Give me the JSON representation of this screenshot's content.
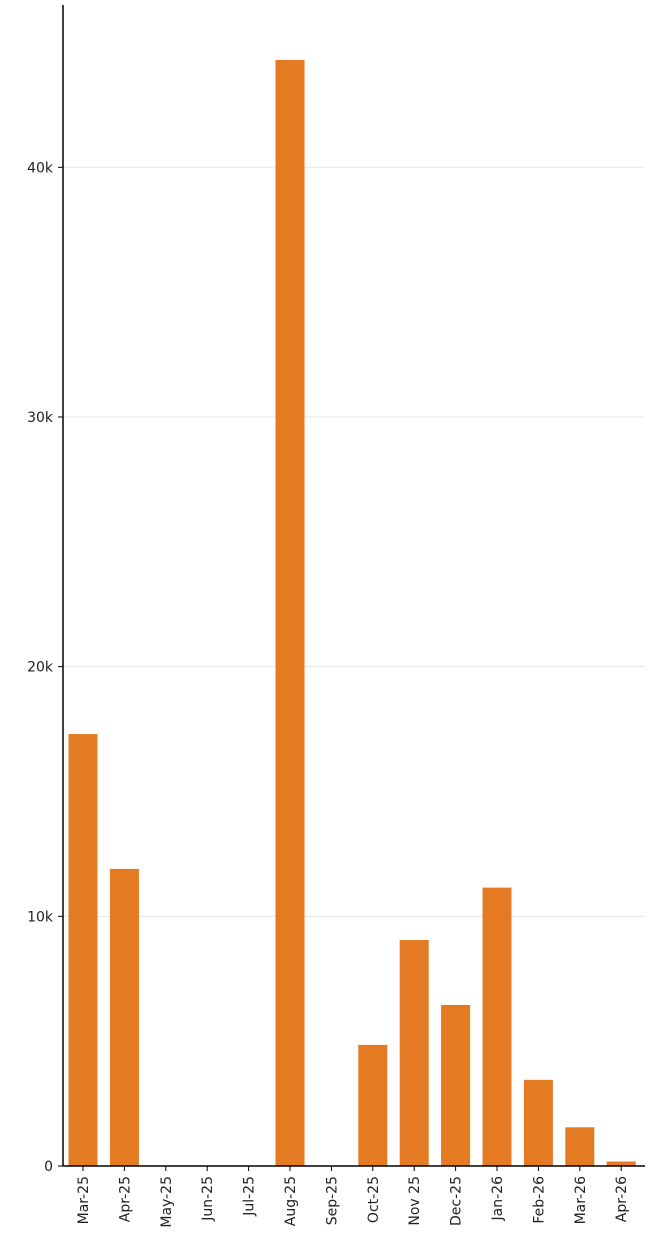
{
  "chart_data": {
    "type": "bar",
    "categories": [
      "Mar-25",
      "Apr-25",
      "May-25",
      "Jun-25",
      "Jul-25",
      "Aug-25",
      "Sep-25",
      "Oct-25",
      "Nov 25",
      "Dec-25",
      "Jan-26",
      "Feb-26",
      "Mar-26",
      "Apr-26"
    ],
    "values": [
      17300,
      11900,
      0,
      0,
      0,
      44300,
      0,
      4850,
      9050,
      6450,
      11150,
      3450,
      1550,
      180
    ],
    "title": "",
    "xlabel": "",
    "ylabel": "",
    "ylim": [
      0,
      46500
    ],
    "yticks": [
      0,
      10000,
      20000,
      30000,
      40000
    ],
    "ytick_labels": [
      "0",
      "10k",
      "20k",
      "30k",
      "40k"
    ],
    "grid": "horizontal",
    "bar_color": "#E47A22",
    "gridline_color": "#e6e6e6",
    "axis_color": "#000000"
  }
}
